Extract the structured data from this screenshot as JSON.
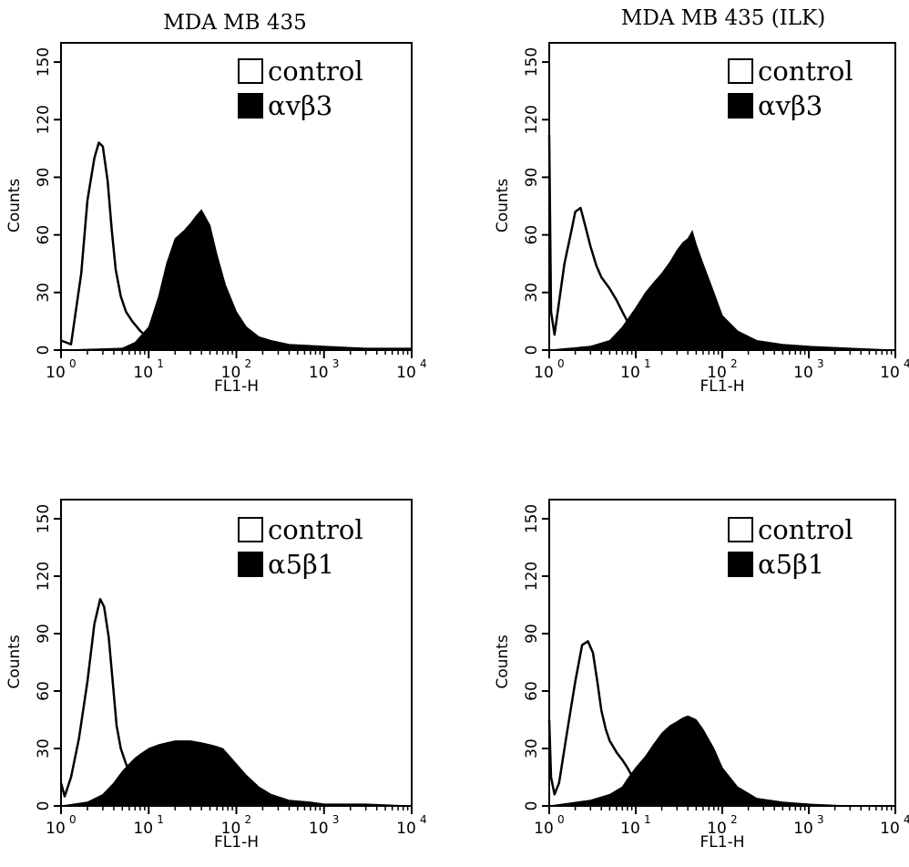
{
  "chart_data": [
    {
      "type": "area",
      "title": "MDA MB 435",
      "xlabel": "FL1-H",
      "ylabel": "Counts",
      "xscale": "log",
      "xlim": [
        1,
        10000
      ],
      "ylim": [
        0,
        160
      ],
      "xticks": {
        "base": "10",
        "exponents": [
          "0",
          "1",
          "2",
          "3",
          "4"
        ]
      },
      "yticks": [
        "0",
        "30",
        "60",
        "90",
        "120",
        "150"
      ],
      "legend": {
        "position": "top-right",
        "entries": [
          {
            "label": "control",
            "fill": "none"
          },
          {
            "label": "αvβ3",
            "fill": "solid"
          }
        ]
      },
      "series": [
        {
          "name": "control",
          "style": "outline",
          "x": [
            1,
            1.3,
            1.7,
            2.0,
            2.4,
            2.7,
            3.0,
            3.4,
            3.8,
            4.2,
            4.8,
            5.5,
            6.5,
            8,
            10,
            13,
            16,
            20
          ],
          "y": [
            5,
            3,
            40,
            78,
            100,
            108,
            106,
            88,
            62,
            42,
            28,
            20,
            15,
            10,
            6,
            3,
            1,
            0
          ]
        },
        {
          "name": "αvβ3",
          "style": "filled",
          "x": [
            1,
            5,
            7,
            10,
            13,
            16,
            20,
            25,
            30,
            35,
            40,
            50,
            60,
            75,
            100,
            130,
            180,
            250,
            400,
            1000,
            3000,
            10000
          ],
          "y": [
            0,
            1,
            4,
            12,
            28,
            45,
            58,
            62,
            66,
            70,
            73,
            65,
            50,
            34,
            20,
            12,
            7,
            5,
            3,
            2,
            1,
            1
          ]
        }
      ]
    },
    {
      "type": "area",
      "title": "MDA MB 435 (ILK)",
      "xlabel": "FL1-H",
      "ylabel": "Counts",
      "xscale": "log",
      "xlim": [
        1,
        10000
      ],
      "ylim": [
        0,
        160
      ],
      "xticks": {
        "base": "10",
        "exponents": [
          "0",
          "1",
          "2",
          "3",
          "4"
        ]
      },
      "yticks": [
        "0",
        "30",
        "60",
        "90",
        "120",
        "150"
      ],
      "legend": {
        "position": "top-right",
        "entries": [
          {
            "label": "control",
            "fill": "none"
          },
          {
            "label": "αvβ3",
            "fill": "solid"
          }
        ]
      },
      "series": [
        {
          "name": "control",
          "style": "outline",
          "x": [
            1,
            1.05,
            1.15,
            1.3,
            1.5,
            1.8,
            2.0,
            2.3,
            2.6,
            3.0,
            3.5,
            4.0,
            5.0,
            6.0,
            7.0,
            8.0,
            10,
            13,
            16,
            20
          ],
          "y": [
            112,
            20,
            8,
            25,
            45,
            62,
            72,
            74,
            65,
            54,
            44,
            38,
            32,
            26,
            20,
            15,
            10,
            5,
            2,
            0
          ]
        },
        {
          "name": "αvβ3",
          "style": "filled",
          "x": [
            1,
            3,
            5,
            7,
            10,
            13,
            16,
            20,
            25,
            30,
            35,
            40,
            45,
            50,
            60,
            80,
            100,
            150,
            250,
            500,
            1000,
            3000,
            10000
          ],
          "y": [
            0,
            2,
            5,
            12,
            22,
            30,
            35,
            40,
            46,
            52,
            56,
            58,
            62,
            55,
            45,
            30,
            18,
            10,
            5,
            3,
            2,
            1,
            0
          ]
        }
      ]
    },
    {
      "type": "area",
      "title": "",
      "xlabel": "FL1-H",
      "ylabel": "Counts",
      "xscale": "log",
      "xlim": [
        1,
        10000
      ],
      "ylim": [
        0,
        160
      ],
      "xticks": {
        "base": "10",
        "exponents": [
          "0",
          "1",
          "2",
          "3",
          "4"
        ]
      },
      "yticks": [
        "0",
        "30",
        "60",
        "90",
        "120",
        "150"
      ],
      "legend": {
        "position": "top-right",
        "entries": [
          {
            "label": "control",
            "fill": "none"
          },
          {
            "label": "α5β1",
            "fill": "solid"
          }
        ]
      },
      "series": [
        {
          "name": "control",
          "style": "outline",
          "x": [
            1,
            1.1,
            1.3,
            1.6,
            2.0,
            2.4,
            2.8,
            3.1,
            3.5,
            3.9,
            4.3,
            4.8,
            5.5,
            6.5,
            8,
            10,
            13,
            16
          ],
          "y": [
            12,
            5,
            15,
            35,
            65,
            95,
            108,
            104,
            88,
            64,
            42,
            30,
            22,
            15,
            10,
            6,
            3,
            0
          ]
        },
        {
          "name": "α5β1",
          "style": "filled",
          "x": [
            1,
            2,
            3,
            4,
            5,
            6,
            7,
            8,
            10,
            13,
            16,
            20,
            30,
            40,
            50,
            60,
            70,
            80,
            100,
            130,
            180,
            250,
            400,
            700,
            1000,
            3000,
            10000
          ],
          "y": [
            0,
            2,
            6,
            12,
            18,
            22,
            25,
            27,
            30,
            32,
            33,
            34,
            34,
            33,
            32,
            31,
            30,
            27,
            22,
            16,
            10,
            6,
            3,
            2,
            1,
            1,
            0
          ]
        }
      ]
    },
    {
      "type": "area",
      "title": "",
      "xlabel": "FL1-H",
      "ylabel": "Counts",
      "xscale": "log",
      "xlim": [
        1,
        10000
      ],
      "ylim": [
        0,
        160
      ],
      "xticks": {
        "base": "10",
        "exponents": [
          "0",
          "1",
          "2",
          "3",
          "4"
        ]
      },
      "yticks": [
        "0",
        "30",
        "60",
        "90",
        "120",
        "150"
      ],
      "legend": {
        "position": "top-right",
        "entries": [
          {
            "label": "control",
            "fill": "none"
          },
          {
            "label": "α5β1",
            "fill": "solid"
          }
        ]
      },
      "series": [
        {
          "name": "control",
          "style": "outline",
          "x": [
            1,
            1.05,
            1.15,
            1.3,
            1.6,
            2.0,
            2.4,
            2.8,
            3.2,
            3.6,
            4.0,
            4.5,
            5.0,
            6.0,
            7.0,
            8.0,
            10,
            13,
            16
          ],
          "y": [
            45,
            15,
            6,
            12,
            38,
            65,
            84,
            86,
            80,
            65,
            50,
            40,
            34,
            28,
            24,
            20,
            12,
            5,
            0
          ]
        },
        {
          "name": "α5β1",
          "style": "filled",
          "x": [
            1,
            3,
            5,
            7,
            8,
            10,
            13,
            16,
            20,
            25,
            30,
            35,
            40,
            45,
            50,
            60,
            80,
            100,
            150,
            250,
            500,
            1000,
            3000,
            10000
          ],
          "y": [
            0,
            3,
            6,
            10,
            14,
            20,
            26,
            32,
            38,
            42,
            44,
            46,
            47,
            46,
            45,
            40,
            30,
            20,
            10,
            4,
            2,
            1,
            0,
            0
          ]
        }
      ]
    }
  ]
}
